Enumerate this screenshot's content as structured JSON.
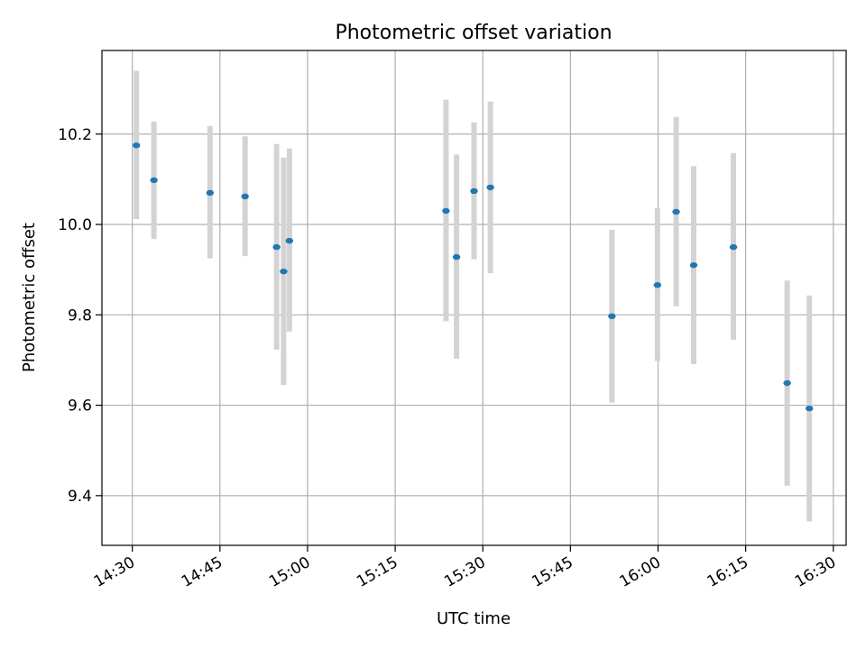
{
  "chart_data": {
    "type": "scatter",
    "title": "Photometric offset variation",
    "xlabel": "UTC time",
    "ylabel": "Photometric offset",
    "x_ticks": [
      "14:30",
      "14:45",
      "15:00",
      "15:15",
      "15:30",
      "15:45",
      "16:00",
      "16:15",
      "16:30"
    ],
    "y_ticks": [
      "9.4",
      "9.6",
      "9.8",
      "10.0",
      "10.2"
    ],
    "xlim": [
      "14:24.8",
      "16:32.2"
    ],
    "ylim": [
      9.29,
      10.385
    ],
    "grid": true,
    "point_color": "#1f77b4",
    "errorbar_color": "#d3d3d3",
    "points": [
      {
        "time": "14:30.7",
        "value": 10.175,
        "low": 10.012,
        "high": 10.34
      },
      {
        "time": "14:33.7",
        "value": 10.098,
        "low": 9.968,
        "high": 10.228
      },
      {
        "time": "14:43.3",
        "value": 10.07,
        "low": 9.925,
        "high": 10.218
      },
      {
        "time": "14:49.3",
        "value": 10.062,
        "low": 9.93,
        "high": 10.195
      },
      {
        "time": "14:54.7",
        "value": 9.95,
        "low": 9.723,
        "high": 10.178
      },
      {
        "time": "14:55.9",
        "value": 9.896,
        "low": 9.645,
        "high": 10.148
      },
      {
        "time": "14:56.9",
        "value": 9.964,
        "low": 9.763,
        "high": 10.168
      },
      {
        "time": "15:23.7",
        "value": 10.03,
        "low": 9.786,
        "high": 10.276
      },
      {
        "time": "15:25.5",
        "value": 9.928,
        "low": 9.703,
        "high": 10.155
      },
      {
        "time": "15:28.5",
        "value": 10.074,
        "low": 9.923,
        "high": 10.226
      },
      {
        "time": "15:31.3",
        "value": 10.082,
        "low": 9.892,
        "high": 10.272
      },
      {
        "time": "15:52.1",
        "value": 9.797,
        "low": 9.606,
        "high": 9.988
      },
      {
        "time": "15:59.9",
        "value": 9.866,
        "low": 9.698,
        "high": 10.036
      },
      {
        "time": "16:03.1",
        "value": 10.028,
        "low": 9.819,
        "high": 10.238
      },
      {
        "time": "16:06.1",
        "value": 9.91,
        "low": 9.691,
        "high": 10.129
      },
      {
        "time": "16:12.9",
        "value": 9.95,
        "low": 9.745,
        "high": 10.158
      },
      {
        "time": "16:22.1",
        "value": 9.649,
        "low": 9.422,
        "high": 9.876
      },
      {
        "time": "16:25.9",
        "value": 9.593,
        "low": 9.343,
        "high": 9.843
      }
    ]
  }
}
